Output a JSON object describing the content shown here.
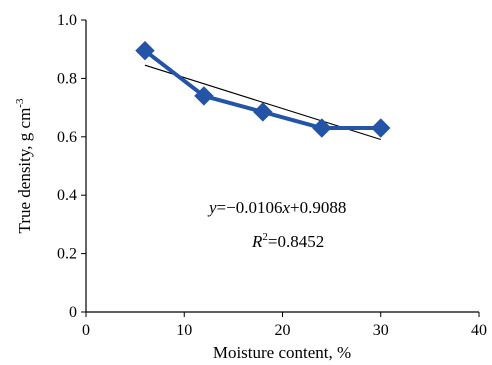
{
  "chart_data": {
    "type": "scatter",
    "xlabel": "Moisture content, %",
    "ylabel_main": "True density, g cm",
    "ylabel_exp": "-3",
    "xlim": [
      0,
      40
    ],
    "ylim": [
      0,
      1.0
    ],
    "xticks": [
      "0",
      "10",
      "20",
      "30",
      "40"
    ],
    "yticks": [
      "0",
      "0.2",
      "0.4",
      "0.6",
      "0.8",
      "1.0"
    ],
    "series": [
      {
        "x": [
          6,
          12,
          18,
          24,
          30
        ],
        "y": [
          0.895,
          0.74,
          0.685,
          0.63,
          0.63
        ],
        "color": "#2354a5",
        "marker": "diamond"
      }
    ],
    "trendline": {
      "slope": -0.0106,
      "intercept": 0.9088,
      "x_range": [
        6,
        30
      ],
      "color": "#000000"
    },
    "annotations": {
      "eq_y": "y",
      "eq_rest": "=−0.0106",
      "eq_x": "x",
      "eq_tail": "+0.9088",
      "r2_base": "R",
      "r2_exp": "2",
      "r2_value": "=0.8452"
    },
    "grid": false
  }
}
